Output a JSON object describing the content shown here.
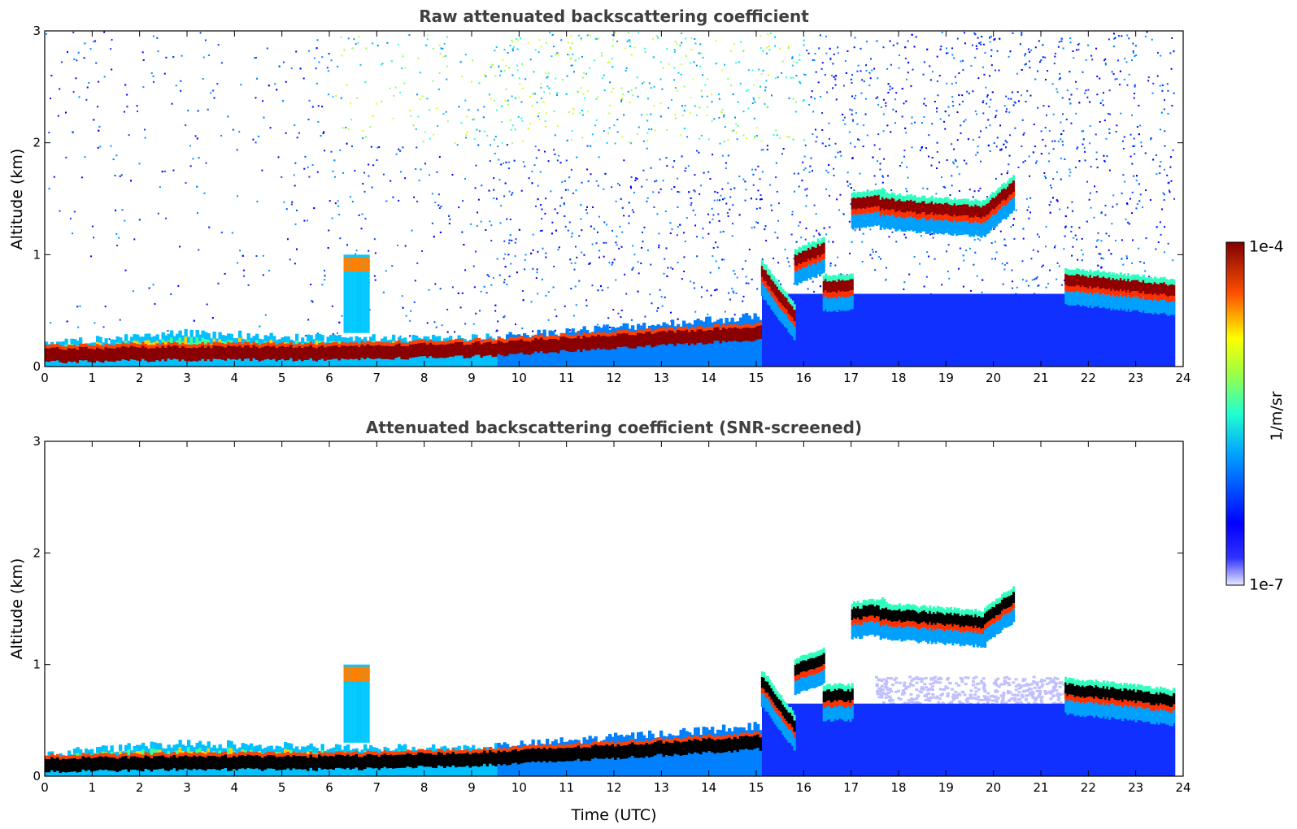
{
  "chart_data": [
    {
      "type": "heatmap",
      "title": "Raw attenuated backscattering coefficient",
      "xlabel": "",
      "ylabel": "Altitude (km)",
      "xlim": [
        0,
        24
      ],
      "ylim": [
        0,
        3
      ],
      "xticks": [
        "0",
        "1",
        "2",
        "3",
        "4",
        "5",
        "6",
        "7",
        "8",
        "9",
        "10",
        "11",
        "12",
        "13",
        "14",
        "15",
        "16",
        "17",
        "18",
        "19",
        "20",
        "21",
        "22",
        "23",
        "24"
      ],
      "yticks": [
        "0",
        "1",
        "2",
        "3"
      ],
      "boundary_layer": [
        {
          "t": 0,
          "top": 0.2,
          "core": 0.1
        },
        {
          "t": 3,
          "top": 0.3,
          "core": 0.12
        },
        {
          "t": 6,
          "top": 0.25,
          "core": 0.12
        },
        {
          "t": 9,
          "top": 0.25,
          "core": 0.15
        },
        {
          "t": 12,
          "top": 0.35,
          "core": 0.22
        },
        {
          "t": 15,
          "top": 0.45,
          "core": 0.3
        }
      ],
      "cloud_layers": [
        {
          "t_start": 15.1,
          "t_end": 15.8,
          "alt_start": 0.85,
          "alt_end": 0.45
        },
        {
          "t_start": 15.8,
          "t_end": 16.4,
          "alt_start": 0.95,
          "alt_end": 1.05
        },
        {
          "t_start": 16.4,
          "t_end": 17.0,
          "alt_start": 0.72,
          "alt_end": 0.72
        },
        {
          "t_start": 17.0,
          "t_end": 17.7,
          "alt_start": 1.45,
          "alt_end": 1.5
        },
        {
          "t_start": 17.6,
          "t_end": 19.8,
          "alt_start": 1.45,
          "alt_end": 1.38
        },
        {
          "t_start": 19.8,
          "t_end": 20.4,
          "alt_start": 1.4,
          "alt_end": 1.6
        },
        {
          "t_start": 21.5,
          "t_end": 23.8,
          "alt_start": 0.78,
          "alt_end": 0.68
        }
      ]
    },
    {
      "type": "heatmap",
      "title": "Attenuated backscattering coefficient (SNR-screened)",
      "xlabel": "Time (UTC)",
      "ylabel": "Altitude (km)",
      "xlim": [
        0,
        24
      ],
      "ylim": [
        0,
        3
      ],
      "xticks": [
        "0",
        "1",
        "2",
        "3",
        "4",
        "5",
        "6",
        "7",
        "8",
        "9",
        "10",
        "11",
        "12",
        "13",
        "14",
        "15",
        "16",
        "17",
        "18",
        "19",
        "20",
        "21",
        "22",
        "23",
        "24"
      ],
      "yticks": [
        "0",
        "1",
        "2",
        "3"
      ]
    }
  ],
  "colorbar": {
    "label": "1/m/sr",
    "max_label": "1e-4",
    "min_label": "1e-7",
    "colors": [
      "#e8e8ff",
      "#0000ff",
      "#00d0ff",
      "#40ff90",
      "#ffff00",
      "#ff6000",
      "#800000"
    ]
  }
}
